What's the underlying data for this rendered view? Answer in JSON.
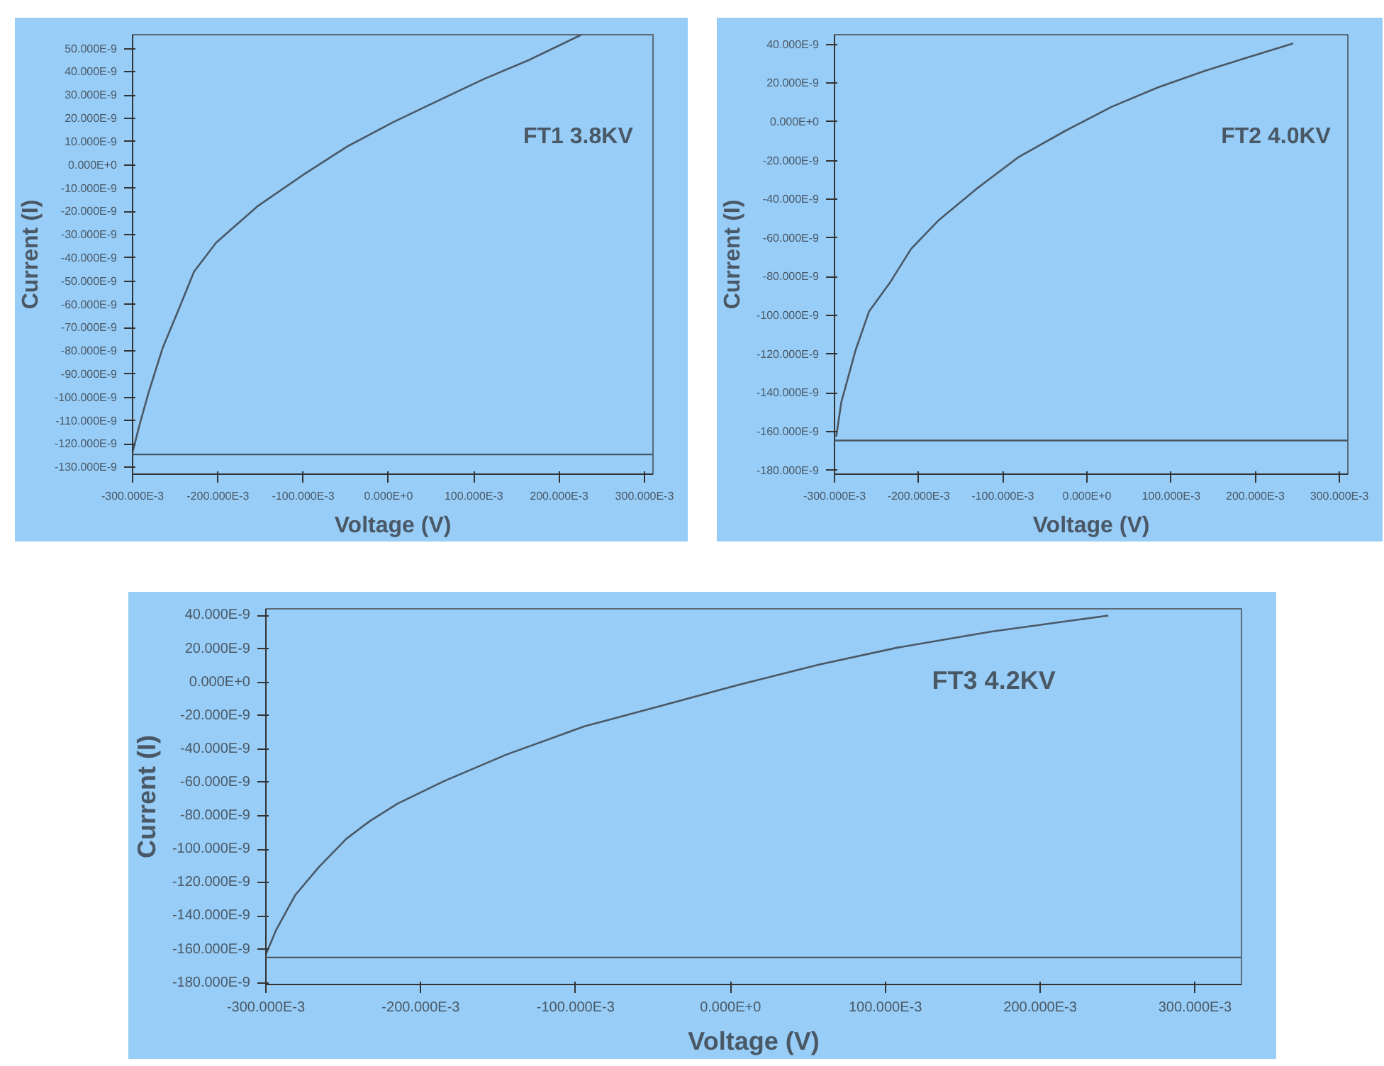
{
  "chart_data": [
    {
      "type": "line",
      "xlabel": "Voltage (V)",
      "ylabel": "Current (I)",
      "annotations": [
        "FT1 3.8KV"
      ],
      "grid": false,
      "marker": "none",
      "line_style": "solid",
      "x": [
        -0.3,
        -0.292,
        -0.281,
        -0.265,
        -0.244,
        -0.228,
        -0.202,
        -0.154,
        -0.101,
        -0.048,
        0.005,
        0.058,
        0.112,
        0.165,
        0.226
      ],
      "series": [
        {
          "color": "#4a5866",
          "values": [
            -1.235e-07,
            -1.12e-07,
            -9.76e-08,
            -7.9e-08,
            -6.04e-08,
            -4.59e-08,
            -3.34e-08,
            -1.79e-08,
            -4.5e-09,
            8e-09,
            1.83e-08,
            2.76e-08,
            3.7e-08,
            4.52e-08,
            5.6e-08
          ]
        }
      ],
      "ref_lines": [
        {
          "axis": "y",
          "value": -1.245e-07,
          "color": "#4a5866"
        }
      ],
      "xlim": [
        -0.3,
        0.31
      ],
      "ylim": [
        -1.33e-07,
        5.6e-08
      ],
      "xticks": [
        {
          "value": -0.3,
          "label": "-300.000E-3"
        },
        {
          "value": -0.2,
          "label": "-200.000E-3"
        },
        {
          "value": -0.1,
          "label": "-100.000E-3"
        },
        {
          "value": 0,
          "label": "0.000E+0"
        },
        {
          "value": 0.1,
          "label": "100.000E-3"
        },
        {
          "value": 0.2,
          "label": "200.000E-3"
        },
        {
          "value": 0.3,
          "label": "300.000E-3"
        }
      ],
      "yticks": [
        {
          "value": 5e-08,
          "label": "50.000E-9"
        },
        {
          "value": 4e-08,
          "label": "40.000E-9"
        },
        {
          "value": 3e-08,
          "label": "30.000E-9"
        },
        {
          "value": 2e-08,
          "label": "20.000E-9"
        },
        {
          "value": 1e-08,
          "label": "10.000E-9"
        },
        {
          "value": 0,
          "label": "0.000E+0"
        },
        {
          "value": -1e-08,
          "label": "-10.000E-9"
        },
        {
          "value": -2e-08,
          "label": "-20.000E-9"
        },
        {
          "value": -3e-08,
          "label": "-30.000E-9"
        },
        {
          "value": -4e-08,
          "label": "-40.000E-9"
        },
        {
          "value": -5e-08,
          "label": "-50.000E-9"
        },
        {
          "value": -6e-08,
          "label": "-60.000E-9"
        },
        {
          "value": -7e-08,
          "label": "-70.000E-9"
        },
        {
          "value": -8e-08,
          "label": "-80.000E-9"
        },
        {
          "value": -9e-08,
          "label": "-90.000E-9"
        },
        {
          "value": -1e-07,
          "label": "-100.000E-9"
        },
        {
          "value": -1.1e-07,
          "label": "-110.000E-9"
        },
        {
          "value": -1.2e-07,
          "label": "-120.000E-9"
        },
        {
          "value": -1.3e-07,
          "label": "-130.000E-9"
        }
      ]
    },
    {
      "type": "line",
      "xlabel": "Voltage (V)",
      "ylabel": "Current (I)",
      "annotations": [
        "FT2 4.0KV"
      ],
      "grid": false,
      "marker": "none",
      "line_style": "solid",
      "x": [
        -0.298,
        -0.292,
        -0.275,
        -0.259,
        -0.234,
        -0.209,
        -0.176,
        -0.131,
        -0.082,
        -0.026,
        0.029,
        0.084,
        0.14,
        0.195,
        0.245
      ],
      "series": [
        {
          "color": "#4a5866",
          "values": [
            -1.627e-07,
            -1.45e-07,
            -1.18e-07,
            -9.8e-08,
            -8.3e-08,
            -6.56e-08,
            -5.07e-08,
            -3.45e-08,
            -1.84e-08,
            -4.7e-09,
            7.7e-09,
            1.77e-08,
            2.63e-08,
            3.38e-08,
            4.05e-08
          ]
        }
      ],
      "ref_lines": [
        {
          "axis": "y",
          "value": -1.646e-07,
          "color": "#4a5866"
        }
      ],
      "xlim": [
        -0.3,
        0.31
      ],
      "ylim": [
        -1.82e-07,
        4.5e-08
      ],
      "xticks": [
        {
          "value": -0.3,
          "label": "-300.000E-3"
        },
        {
          "value": -0.2,
          "label": "-200.000E-3"
        },
        {
          "value": -0.1,
          "label": "-100.000E-3"
        },
        {
          "value": 0,
          "label": "0.000E+0"
        },
        {
          "value": 0.1,
          "label": "100.000E-3"
        },
        {
          "value": 0.2,
          "label": "200.000E-3"
        },
        {
          "value": 0.3,
          "label": "300.000E-3"
        }
      ],
      "yticks": [
        {
          "value": 4e-08,
          "label": "40.000E-9"
        },
        {
          "value": 2e-08,
          "label": "20.000E-9"
        },
        {
          "value": 0,
          "label": "0.000E+0"
        },
        {
          "value": -2e-08,
          "label": "-20.000E-9"
        },
        {
          "value": -4e-08,
          "label": "-40.000E-9"
        },
        {
          "value": -6e-08,
          "label": "-60.000E-9"
        },
        {
          "value": -8e-08,
          "label": "-80.000E-9"
        },
        {
          "value": -1e-07,
          "label": "-100.000E-9"
        },
        {
          "value": -1.2e-07,
          "label": "-120.000E-9"
        },
        {
          "value": -1.4e-07,
          "label": "-140.000E-9"
        },
        {
          "value": -1.6e-07,
          "label": "-160.000E-9"
        },
        {
          "value": -1.8e-07,
          "label": "-180.000E-9"
        }
      ]
    },
    {
      "type": "line",
      "xlabel": "Voltage (V)",
      "ylabel": "Current (I)",
      "annotations": [
        "FT3 4.2KV"
      ],
      "grid": false,
      "marker": "none",
      "line_style": "solid",
      "x": [
        -0.3,
        -0.2934,
        -0.281,
        -0.2657,
        -0.248,
        -0.233,
        -0.215,
        -0.185,
        -0.1447,
        -0.0943,
        -0.0438,
        0.0066,
        0.057,
        0.1075,
        0.168,
        0.244
      ],
      "series": [
        {
          "color": "#4a5866",
          "values": [
            -1.63e-07,
            -1.484e-07,
            -1.274e-07,
            -1.106e-07,
            -9.37e-08,
            -8.32e-08,
            -7.27e-08,
            -5.92e-08,
            -4.33e-08,
            -2.64e-08,
            -1.38e-08,
            -1.2e-09,
            1.06e-08,
            2.07e-08,
            3.03e-08,
            4e-08
          ]
        }
      ],
      "ref_lines": [
        {
          "axis": "y",
          "value": -1.648e-07,
          "color": "#4a5866"
        }
      ],
      "xlim": [
        -0.3,
        0.33
      ],
      "ylim": [
        -1.81e-07,
        4.4e-08
      ],
      "xticks": [
        {
          "value": -0.3,
          "label": "-300.000E-3"
        },
        {
          "value": -0.2,
          "label": "-200.000E-3"
        },
        {
          "value": -0.1,
          "label": "-100.000E-3"
        },
        {
          "value": 0,
          "label": "0.000E+0"
        },
        {
          "value": 0.1,
          "label": "100.000E-3"
        },
        {
          "value": 0.2,
          "label": "200.000E-3"
        },
        {
          "value": 0.3,
          "label": "300.000E-3"
        }
      ],
      "yticks": [
        {
          "value": 4e-08,
          "label": "40.000E-9"
        },
        {
          "value": 2e-08,
          "label": "20.000E-9"
        },
        {
          "value": 0,
          "label": "0.000E+0"
        },
        {
          "value": -2e-08,
          "label": "-20.000E-9"
        },
        {
          "value": -4e-08,
          "label": "-40.000E-9"
        },
        {
          "value": -6e-08,
          "label": "-60.000E-9"
        },
        {
          "value": -8e-08,
          "label": "-80.000E-9"
        },
        {
          "value": -1e-07,
          "label": "-100.000E-9"
        },
        {
          "value": -1.2e-07,
          "label": "-120.000E-9"
        },
        {
          "value": -1.4e-07,
          "label": "-140.000E-9"
        },
        {
          "value": -1.6e-07,
          "label": "-160.000E-9"
        },
        {
          "value": -1.8e-07,
          "label": "-180.000E-9"
        }
      ]
    }
  ]
}
